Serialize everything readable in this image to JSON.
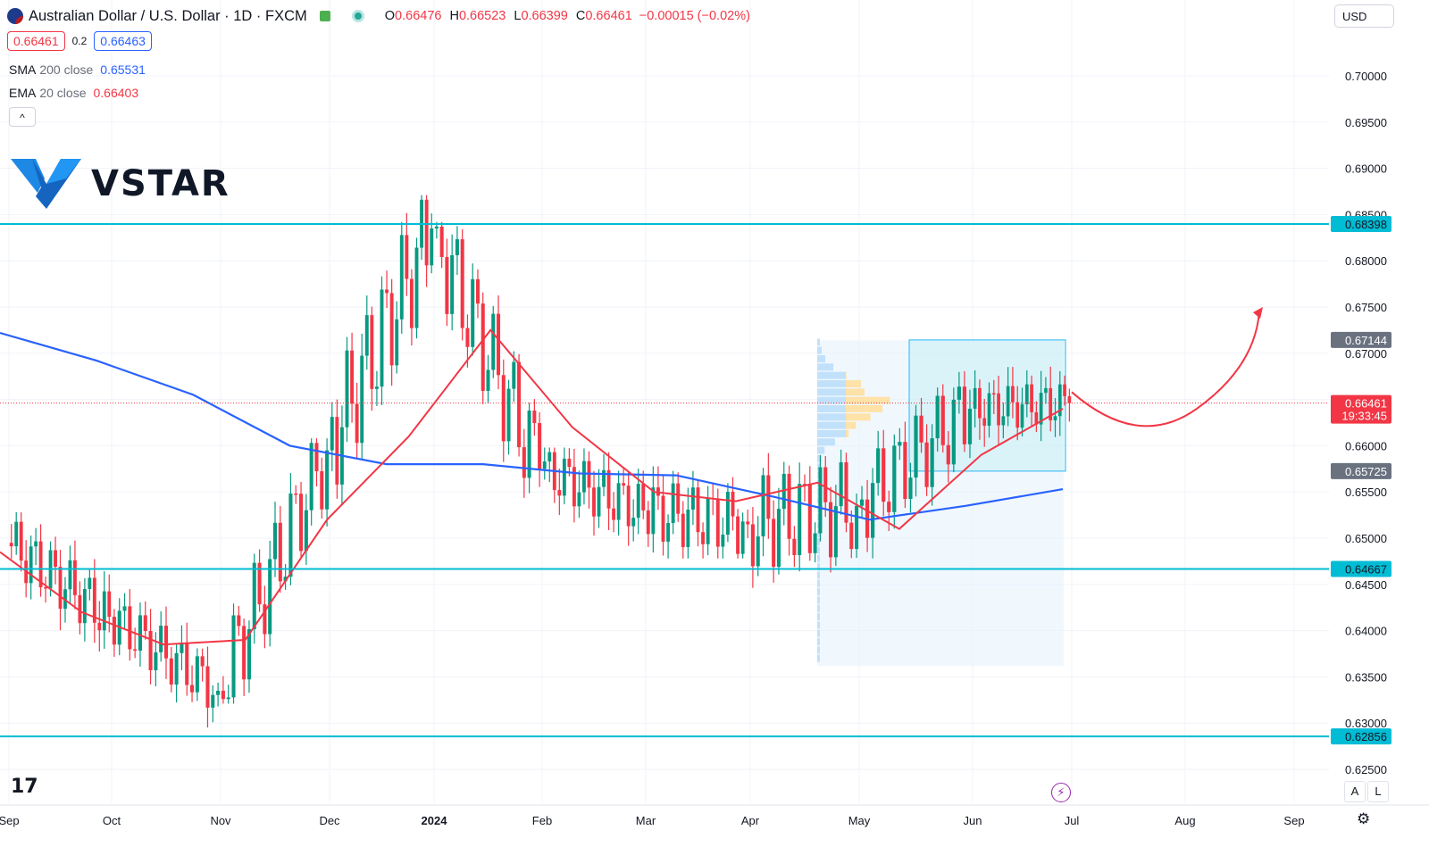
{
  "header": {
    "symbol": "Australian Dollar / U.S. Dollar · 1D · FXCM",
    "open_label": "O",
    "open": "0.66476",
    "high_label": "H",
    "high": "0.66523",
    "low_label": "L",
    "low": "0.66399",
    "close_label": "C",
    "close": "0.66461",
    "change": "−0.00015 (−0.02%)"
  },
  "trade": {
    "sell": "0.66461",
    "spread": "0.2",
    "buy": "0.66463"
  },
  "indicators": {
    "sma": {
      "name": "SMA",
      "params": "200 close",
      "value": "0.65531",
      "color": "#2962ff"
    },
    "ema": {
      "name": "EMA",
      "params": "20 close",
      "value": "0.66403",
      "color": "#f23645"
    }
  },
  "collapse_icon": "^",
  "brand": {
    "name": "VSTAR"
  },
  "currency_button": "USD",
  "tradingview_logo": "17",
  "scale_buttons": {
    "auto": "A",
    "log": "L"
  },
  "icons": [
    "flag-icon",
    "market-open-icon",
    "live-dot-icon",
    "chevron-up-icon",
    "lightning-icon",
    "gear-icon",
    "tradingview-logo-icon",
    "vstar-logo-icon"
  ],
  "colors": {
    "up": "#089981",
    "down": "#f23645",
    "level": "#00bcd4",
    "sma": "#2962ff",
    "ema": "#f23645",
    "arrow": "#f23645"
  },
  "chart_data": {
    "type": "candlestick",
    "ylim": [
      0.625,
      0.7
    ],
    "y_ticks": [
      "0.62500",
      "0.63000",
      "0.63500",
      "0.64000",
      "0.64500",
      "0.65000",
      "0.65500",
      "0.66000",
      "0.66500",
      "0.67000",
      "0.67500",
      "0.68000",
      "0.68500",
      "0.69000",
      "0.69500",
      "0.70000"
    ],
    "x_ticks": [
      "Sep",
      "Oct",
      "Nov",
      "Dec",
      "2024",
      "Feb",
      "Mar",
      "Apr",
      "May",
      "Jun",
      "Jul",
      "Aug",
      "Sep"
    ],
    "horizontal_levels": [
      0.68398,
      0.64667,
      0.62856
    ],
    "price_labels": [
      {
        "text": "0.68398",
        "value": 0.68398,
        "kind": "level"
      },
      {
        "text": "0.67144",
        "value": 0.67144,
        "kind": "range-top"
      },
      {
        "text": "0.66461",
        "value": 0.66461,
        "kind": "current",
        "sub": "19:33:45"
      },
      {
        "text": "0.65725",
        "value": 0.65725,
        "kind": "range-bottom"
      },
      {
        "text": "0.64667",
        "value": 0.64667,
        "kind": "level"
      },
      {
        "text": "0.62856",
        "value": 0.62856,
        "kind": "level"
      }
    ],
    "range_box": {
      "from": "mid-May",
      "to": "end-June",
      "top": 0.67144,
      "bottom": 0.65725
    },
    "current_price": 0.66461,
    "projection": "bullish arrow from ~0.6645 dipping to ~0.662 then rising toward ~0.675",
    "months": [
      {
        "month": "Sep",
        "open": 0.6495,
        "close": 0.6415,
        "high": 0.6528,
        "low": 0.6358
      },
      {
        "month": "Oct",
        "open": 0.6415,
        "close": 0.6335,
        "high": 0.6445,
        "low": 0.6287
      },
      {
        "month": "Nov",
        "open": 0.6335,
        "close": 0.6595,
        "high": 0.6608,
        "low": 0.6321
      },
      {
        "month": "Dec",
        "open": 0.6595,
        "close": 0.6835,
        "high": 0.6871,
        "low": 0.6525
      },
      {
        "month": "Jan",
        "open": 0.6835,
        "close": 0.6575,
        "high": 0.6842,
        "low": 0.6525
      },
      {
        "month": "Feb",
        "open": 0.6575,
        "close": 0.653,
        "high": 0.6598,
        "low": 0.6442
      },
      {
        "month": "Mar",
        "open": 0.653,
        "close": 0.6515,
        "high": 0.6667,
        "low": 0.6478
      },
      {
        "month": "Apr",
        "open": 0.6515,
        "close": 0.6535,
        "high": 0.6645,
        "low": 0.6362
      },
      {
        "month": "May",
        "open": 0.6535,
        "close": 0.664,
        "high": 0.6714,
        "low": 0.6465
      },
      {
        "month": "Jun",
        "open": 0.664,
        "close": 0.6646,
        "high": 0.6703,
        "low": 0.6573
      }
    ],
    "sma200_path": [
      0.6722,
      0.6692,
      0.6655,
      0.66,
      0.658,
      0.658,
      0.657,
      0.6568,
      0.6545,
      0.652,
      0.6535,
      0.6553
    ],
    "ema20_path": [
      0.6485,
      0.642,
      0.6385,
      0.639,
      0.652,
      0.661,
      0.6725,
      0.662,
      0.655,
      0.654,
      0.656,
      0.651,
      0.659,
      0.664
    ]
  }
}
